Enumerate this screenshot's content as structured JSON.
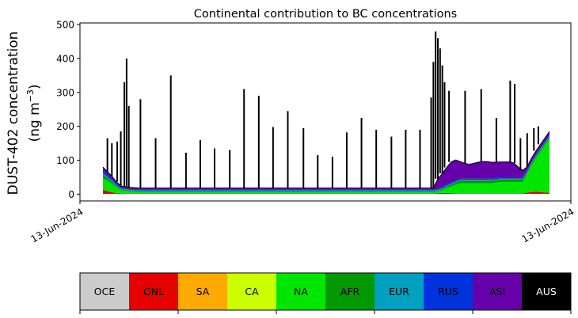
{
  "chart_data": {
    "type": "area",
    "title": "Continental contribution to BC concentrations",
    "ylabel_line1": "DUST-402 concentration",
    "ylabel_line2_prefix": "(ng m",
    "ylabel_line2_sup": "−3",
    "ylabel_line2_suffix": ")",
    "ylim": [
      -20,
      505
    ],
    "yticks": [
      0,
      100,
      200,
      300,
      400,
      500
    ],
    "xticks": [
      "13-Jun-2024",
      "13-Jun-2024"
    ],
    "grid": false,
    "x": [
      0,
      1,
      2,
      3,
      4,
      5,
      6,
      7,
      8,
      9,
      10,
      11,
      12,
      13,
      14,
      15,
      16,
      17,
      18,
      19,
      20,
      21,
      22,
      23,
      24,
      25,
      26,
      27,
      28,
      29,
      30,
      31,
      32,
      33,
      34,
      35,
      36,
      37,
      38,
      39,
      40,
      41,
      42,
      43,
      44,
      45,
      46,
      47,
      48,
      49,
      50,
      51,
      52,
      53,
      54,
      55,
      56,
      57,
      58,
      59,
      60,
      61,
      62,
      63,
      64,
      65,
      66,
      67,
      68,
      69,
      70,
      71,
      72,
      73,
      74,
      75,
      76,
      77,
      78,
      79,
      80,
      81,
      82,
      83,
      84,
      85,
      86,
      87,
      88,
      89,
      90,
      91,
      92,
      93,
      94,
      95,
      96,
      97,
      98,
      99,
      100
    ],
    "series": [
      {
        "name": "OCE",
        "color": "#cccccc",
        "values": [
          1,
          1,
          1,
          1,
          1,
          1,
          1,
          1,
          1,
          1,
          1,
          1,
          1,
          1,
          1,
          1,
          1,
          1,
          1,
          1,
          1,
          1,
          1,
          1,
          1,
          1,
          1,
          1,
          1,
          1,
          1,
          1,
          1,
          1,
          1,
          1,
          1,
          1,
          1,
          1,
          1,
          1,
          1,
          1,
          1,
          1,
          1,
          1,
          1,
          1,
          1,
          1,
          1,
          1,
          1,
          1,
          1,
          1,
          1,
          1,
          1,
          1,
          1,
          1,
          1,
          1,
          1,
          1,
          1,
          1,
          1,
          1,
          1,
          1,
          1,
          1,
          1,
          1,
          1,
          1,
          1,
          1,
          1,
          1,
          1,
          1,
          1,
          1,
          1,
          1,
          1,
          1,
          1,
          1,
          1,
          1,
          1,
          1,
          1,
          1,
          1
        ]
      },
      {
        "name": "GNL",
        "color": "#e60000",
        "values": [
          12,
          8,
          5,
          2,
          1,
          1,
          1,
          1,
          1,
          1,
          1,
          1,
          1,
          1,
          1,
          1,
          1,
          1,
          1,
          1,
          1,
          1,
          1,
          1,
          1,
          1,
          1,
          1,
          1,
          1,
          1,
          1,
          1,
          1,
          1,
          1,
          1,
          1,
          1,
          1,
          1,
          1,
          1,
          1,
          1,
          1,
          1,
          1,
          1,
          1,
          1,
          1,
          1,
          1,
          1,
          1,
          1,
          1,
          1,
          1,
          1,
          1,
          1,
          1,
          1,
          1,
          1,
          1,
          1,
          1,
          1,
          1,
          1,
          1,
          1,
          2,
          3,
          3,
          2,
          1,
          1,
          1,
          1,
          1,
          1,
          1,
          1,
          1,
          1,
          1,
          1,
          1,
          1,
          1,
          1,
          4,
          5,
          6,
          5,
          4,
          3
        ]
      },
      {
        "name": "SA",
        "color": "#ffaa00",
        "values": [
          0,
          0,
          0,
          0,
          0,
          0,
          0,
          0,
          0,
          0,
          0,
          0,
          0,
          0,
          0,
          0,
          0,
          0,
          0,
          0,
          0,
          0,
          0,
          0,
          0,
          0,
          0,
          0,
          0,
          0,
          0,
          0,
          0,
          0,
          0,
          0,
          0,
          0,
          0,
          0,
          0,
          0,
          0,
          0,
          0,
          0,
          0,
          0,
          0,
          0,
          0,
          0,
          0,
          0,
          0,
          0,
          0,
          0,
          0,
          0,
          0,
          0,
          0,
          0,
          0,
          0,
          0,
          0,
          0,
          0,
          0,
          0,
          0,
          0,
          0,
          0,
          0,
          0,
          0,
          0,
          0,
          0,
          0,
          0,
          0,
          0,
          0,
          0,
          0,
          0,
          0,
          0,
          0,
          0,
          0,
          0,
          0,
          0,
          0,
          0,
          0
        ]
      },
      {
        "name": "CA",
        "color": "#ccff00",
        "values": [
          0,
          0,
          0,
          0,
          0,
          0,
          0,
          0,
          0,
          0,
          0,
          0,
          0,
          0,
          0,
          0,
          0,
          0,
          0,
          0,
          0,
          0,
          0,
          0,
          0,
          0,
          0,
          0,
          0,
          0,
          0,
          0,
          0,
          0,
          0,
          0,
          0,
          0,
          0,
          0,
          0,
          0,
          0,
          0,
          0,
          0,
          0,
          0,
          0,
          0,
          0,
          0,
          0,
          0,
          0,
          0,
          0,
          0,
          0,
          0,
          0,
          0,
          0,
          0,
          0,
          0,
          0,
          0,
          0,
          0,
          0,
          0,
          0,
          0,
          0,
          0,
          0,
          0,
          0,
          0,
          0,
          0,
          0,
          0,
          0,
          0,
          0,
          0,
          0,
          0,
          0,
          0,
          0,
          0,
          0,
          0,
          0,
          0,
          0,
          0,
          0
        ]
      },
      {
        "name": "NA",
        "color": "#00e600",
        "values": [
          35,
          30,
          25,
          18,
          10,
          8,
          6,
          5,
          4,
          4,
          4,
          4,
          4,
          4,
          4,
          4,
          4,
          4,
          4,
          4,
          4,
          4,
          4,
          4,
          4,
          4,
          4,
          4,
          4,
          4,
          4,
          4,
          4,
          4,
          4,
          4,
          4,
          4,
          4,
          4,
          4,
          4,
          4,
          4,
          4,
          4,
          4,
          4,
          4,
          4,
          4,
          4,
          4,
          4,
          4,
          4,
          4,
          4,
          4,
          4,
          4,
          4,
          4,
          4,
          4,
          4,
          4,
          4,
          4,
          4,
          4,
          4,
          4,
          4,
          4,
          5,
          8,
          14,
          20,
          26,
          30,
          30,
          30,
          30,
          30,
          30,
          30,
          30,
          32,
          34,
          34,
          34,
          34,
          34,
          34,
          55,
          80,
          100,
          120,
          140,
          160
        ]
      },
      {
        "name": "AFR",
        "color": "#009900",
        "values": [
          10,
          8,
          6,
          4,
          3,
          3,
          3,
          3,
          3,
          3,
          3,
          3,
          3,
          3,
          3,
          3,
          3,
          3,
          3,
          3,
          3,
          3,
          3,
          3,
          3,
          3,
          3,
          3,
          3,
          3,
          3,
          3,
          3,
          3,
          3,
          3,
          3,
          3,
          3,
          3,
          3,
          3,
          3,
          3,
          3,
          3,
          3,
          3,
          3,
          3,
          3,
          3,
          3,
          3,
          3,
          3,
          3,
          3,
          3,
          3,
          3,
          3,
          3,
          3,
          3,
          3,
          3,
          3,
          3,
          3,
          3,
          3,
          3,
          3,
          3,
          3,
          4,
          5,
          6,
          7,
          8,
          8,
          8,
          8,
          8,
          8,
          8,
          8,
          8,
          8,
          8,
          8,
          8,
          8,
          8,
          5,
          5,
          5,
          5,
          5,
          5
        ]
      },
      {
        "name": "EUR",
        "color": "#00a0c0",
        "values": [
          4,
          4,
          3,
          2,
          2,
          2,
          2,
          2,
          2,
          2,
          2,
          2,
          2,
          2,
          2,
          2,
          2,
          2,
          2,
          2,
          2,
          2,
          2,
          2,
          2,
          2,
          2,
          2,
          2,
          2,
          2,
          2,
          2,
          2,
          2,
          2,
          2,
          2,
          2,
          2,
          2,
          2,
          2,
          2,
          2,
          2,
          2,
          2,
          2,
          2,
          2,
          2,
          2,
          2,
          2,
          2,
          2,
          2,
          2,
          2,
          2,
          2,
          2,
          2,
          2,
          2,
          2,
          2,
          2,
          2,
          2,
          2,
          2,
          2,
          2,
          2,
          2,
          2,
          2,
          2,
          2,
          2,
          2,
          2,
          2,
          2,
          2,
          2,
          2,
          2,
          2,
          2,
          2,
          2,
          2,
          2,
          2,
          2,
          2,
          2,
          2
        ]
      },
      {
        "name": "RUS",
        "color": "#0033dd",
        "values": [
          8,
          6,
          5,
          4,
          2,
          2,
          2,
          2,
          2,
          2,
          2,
          2,
          2,
          2,
          2,
          2,
          2,
          2,
          2,
          2,
          2,
          2,
          2,
          2,
          2,
          2,
          2,
          2,
          2,
          2,
          2,
          2,
          2,
          2,
          2,
          2,
          2,
          2,
          2,
          2,
          2,
          2,
          2,
          2,
          2,
          2,
          2,
          2,
          2,
          2,
          2,
          2,
          2,
          2,
          2,
          2,
          2,
          2,
          2,
          2,
          2,
          2,
          2,
          2,
          2,
          2,
          2,
          2,
          2,
          2,
          2,
          2,
          2,
          2,
          2,
          2,
          3,
          4,
          4,
          4,
          4,
          4,
          4,
          4,
          4,
          4,
          4,
          4,
          4,
          4,
          4,
          4,
          4,
          4,
          4,
          4,
          4,
          4,
          4,
          4,
          4
        ]
      },
      {
        "name": "ASI",
        "color": "#6600aa",
        "values": [
          10,
          9,
          8,
          6,
          5,
          5,
          5,
          5,
          5,
          5,
          5,
          5,
          5,
          5,
          5,
          5,
          5,
          5,
          5,
          5,
          5,
          5,
          5,
          5,
          5,
          5,
          5,
          5,
          5,
          5,
          5,
          5,
          5,
          5,
          5,
          5,
          5,
          5,
          5,
          5,
          5,
          5,
          5,
          5,
          5,
          5,
          5,
          5,
          5,
          5,
          5,
          5,
          5,
          5,
          5,
          5,
          5,
          5,
          5,
          5,
          5,
          5,
          5,
          5,
          5,
          5,
          5,
          5,
          5,
          5,
          5,
          5,
          5,
          5,
          5,
          30,
          40,
          50,
          60,
          60,
          50,
          45,
          42,
          45,
          48,
          50,
          50,
          48,
          46,
          45,
          45,
          45,
          42,
          30,
          20,
          10,
          10,
          10,
          10,
          10,
          10
        ]
      },
      {
        "name": "AUS",
        "color": "#000000",
        "values": [
          0,
          0,
          0,
          0,
          0,
          0,
          0,
          0,
          0,
          0,
          0,
          0,
          0,
          0,
          0,
          0,
          0,
          0,
          0,
          0,
          0,
          0,
          0,
          0,
          0,
          0,
          0,
          0,
          0,
          0,
          0,
          0,
          0,
          0,
          0,
          0,
          0,
          0,
          0,
          0,
          0,
          0,
          0,
          0,
          0,
          0,
          0,
          0,
          0,
          0,
          0,
          0,
          0,
          0,
          0,
          0,
          0,
          0,
          0,
          0,
          0,
          0,
          0,
          0,
          0,
          0,
          0,
          0,
          0,
          0,
          0,
          0,
          0,
          0,
          0,
          0,
          0,
          0,
          0,
          0,
          0,
          0,
          0,
          0,
          0,
          0,
          0,
          0,
          0,
          0,
          0,
          0,
          0,
          0,
          0,
          0,
          0,
          0,
          0,
          0,
          0
        ]
      }
    ],
    "spikes": [
      {
        "x": 1.0,
        "y": 165
      },
      {
        "x": 2.0,
        "y": 150
      },
      {
        "x": 3.2,
        "y": 155
      },
      {
        "x": 4.0,
        "y": 185
      },
      {
        "x": 4.8,
        "y": 330
      },
      {
        "x": 5.3,
        "y": 400
      },
      {
        "x": 5.8,
        "y": 260
      },
      {
        "x": 8.4,
        "y": 280
      },
      {
        "x": 11.8,
        "y": 165
      },
      {
        "x": 15.2,
        "y": 350
      },
      {
        "x": 18.6,
        "y": 122
      },
      {
        "x": 21.8,
        "y": 160
      },
      {
        "x": 25.0,
        "y": 135
      },
      {
        "x": 28.4,
        "y": 130
      },
      {
        "x": 31.6,
        "y": 310
      },
      {
        "x": 34.9,
        "y": 290
      },
      {
        "x": 38.1,
        "y": 198
      },
      {
        "x": 41.4,
        "y": 245
      },
      {
        "x": 44.9,
        "y": 195
      },
      {
        "x": 48.1,
        "y": 115
      },
      {
        "x": 51.4,
        "y": 110
      },
      {
        "x": 54.6,
        "y": 182
      },
      {
        "x": 57.9,
        "y": 225
      },
      {
        "x": 61.2,
        "y": 190
      },
      {
        "x": 64.6,
        "y": 170
      },
      {
        "x": 67.8,
        "y": 190
      },
      {
        "x": 71.0,
        "y": 190
      },
      {
        "x": 73.5,
        "y": 285
      },
      {
        "x": 74.0,
        "y": 390
      },
      {
        "x": 74.5,
        "y": 480
      },
      {
        "x": 75.0,
        "y": 460
      },
      {
        "x": 75.5,
        "y": 430
      },
      {
        "x": 76.0,
        "y": 380
      },
      {
        "x": 76.5,
        "y": 330
      },
      {
        "x": 77.5,
        "y": 305
      },
      {
        "x": 81.1,
        "y": 305
      },
      {
        "x": 84.7,
        "y": 310
      },
      {
        "x": 88.1,
        "y": 225
      },
      {
        "x": 91.2,
        "y": 335
      },
      {
        "x": 92.2,
        "y": 325
      },
      {
        "x": 93.5,
        "y": 165
      },
      {
        "x": 95.0,
        "y": 180
      },
      {
        "x": 96.5,
        "y": 195
      },
      {
        "x": 97.5,
        "y": 200
      }
    ],
    "legend": {
      "placement": "bottom",
      "entries": [
        {
          "label": "OCE",
          "color": "#cccccc",
          "text_color": "#000000"
        },
        {
          "label": "GNL",
          "color": "#e60000",
          "text_color": "#000000"
        },
        {
          "label": "SA",
          "color": "#ffaa00",
          "text_color": "#000000"
        },
        {
          "label": "CA",
          "color": "#ccff00",
          "text_color": "#000000"
        },
        {
          "label": "NA",
          "color": "#00e600",
          "text_color": "#000000"
        },
        {
          "label": "AFR",
          "color": "#009900",
          "text_color": "#000000"
        },
        {
          "label": "EUR",
          "color": "#00a0c0",
          "text_color": "#000000"
        },
        {
          "label": "RUS",
          "color": "#0033dd",
          "text_color": "#000000"
        },
        {
          "label": "ASI",
          "color": "#6600aa",
          "text_color": "#000000"
        },
        {
          "label": "AUS",
          "color": "#000000",
          "text_color": "#ffffff"
        }
      ]
    }
  }
}
